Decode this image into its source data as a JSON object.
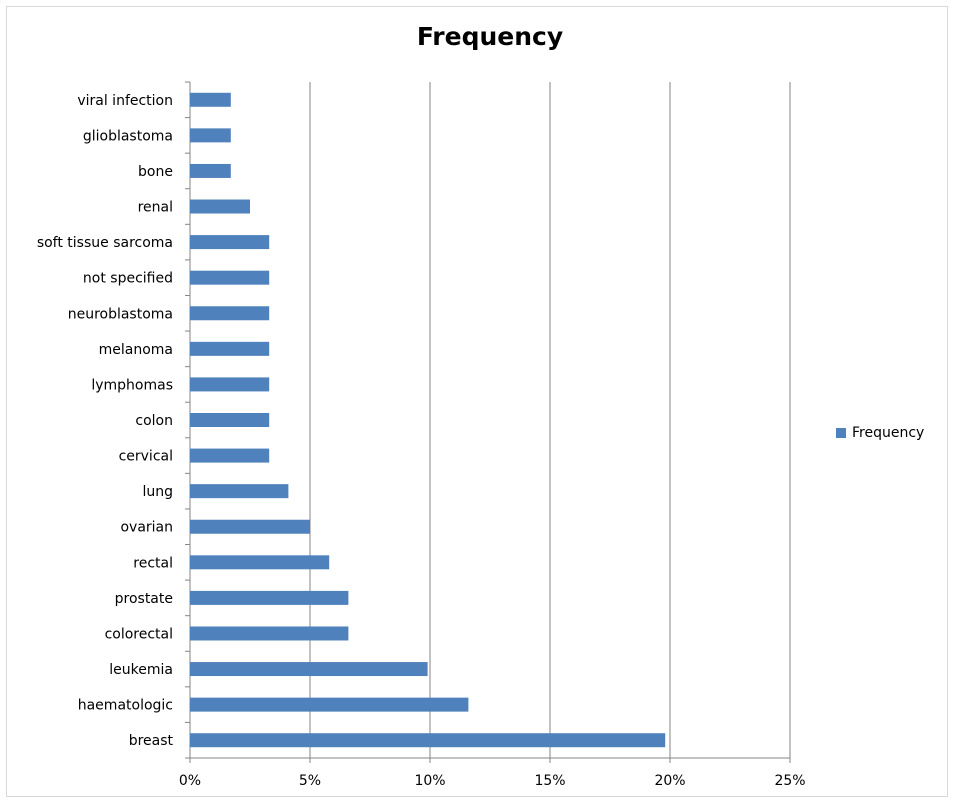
{
  "chart_data": {
    "type": "bar",
    "orientation": "horizontal",
    "title": "Frequency",
    "xlabel": "",
    "ylabel": "",
    "categories": [
      "viral infection",
      "glioblastoma",
      "bone",
      "renal",
      "soft tissue sarcoma",
      "not specified",
      "neuroblastoma",
      "melanoma",
      "lymphomas",
      "colon",
      "cervical",
      "lung",
      "ovarian",
      "rectal",
      "prostate",
      "colorectal",
      "leukemia",
      "haematologic",
      "breast"
    ],
    "series": [
      {
        "name": "Frequency",
        "color": "#4f81bd",
        "values": [
          1.7,
          1.7,
          1.7,
          2.5,
          3.3,
          3.3,
          3.3,
          3.3,
          3.3,
          3.3,
          3.3,
          4.1,
          5.0,
          5.8,
          6.6,
          6.6,
          9.9,
          11.6,
          19.8
        ]
      }
    ],
    "xlim": [
      0,
      25
    ],
    "x_ticks": [
      "0%",
      "5%",
      "10%",
      "15%",
      "20%",
      "25%"
    ],
    "x_tick_values": [
      0,
      5,
      10,
      15,
      20,
      25
    ],
    "grid": "vertical",
    "legend": {
      "position": "right",
      "entries": [
        "Frequency"
      ]
    }
  }
}
